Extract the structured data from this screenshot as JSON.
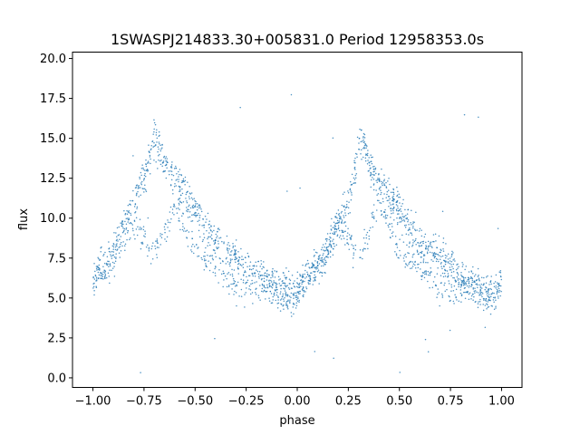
{
  "chart_data": {
    "type": "scatter",
    "title": "1SWASPJ214833.30+005831.0 Period 12958353.0s",
    "xlabel": "phase",
    "ylabel": "flux",
    "xlim": [
      -1.1,
      1.1
    ],
    "ylim": [
      -0.6,
      20.4
    ],
    "xticks": [
      -1.0,
      -0.75,
      -0.5,
      -0.25,
      0.0,
      0.25,
      0.5,
      0.75,
      1.0
    ],
    "xtick_labels": [
      "−1.00",
      "−0.75",
      "−0.50",
      "−0.25",
      "0.00",
      "0.25",
      "0.50",
      "0.75",
      "1.00"
    ],
    "yticks": [
      0.0,
      2.5,
      5.0,
      7.5,
      10.0,
      12.5,
      15.0,
      17.5,
      20.0
    ],
    "ytick_labels": [
      "0.0",
      "2.5",
      "5.0",
      "7.5",
      "10.0",
      "12.5",
      "15.0",
      "17.5",
      "20.0"
    ],
    "grid": false,
    "marker_color": "#1f77b4",
    "series": [
      {
        "description_of_shape": "folded light curve, pattern repeats with period 1 in phase",
        "phase": [
          -1.0,
          -0.95,
          -0.9,
          -0.85,
          -0.8,
          -0.75,
          -0.72,
          -0.7,
          -0.68,
          -0.65,
          -0.6,
          -0.55,
          -0.5,
          -0.45,
          -0.4,
          -0.35,
          -0.3,
          -0.25,
          -0.2,
          -0.15,
          -0.1,
          -0.05,
          0.0,
          0.05,
          0.1,
          0.15,
          0.2,
          0.25,
          0.28,
          0.3,
          0.32,
          0.35,
          0.4,
          0.45,
          0.5,
          0.55,
          0.6,
          0.65,
          0.7,
          0.75,
          0.8,
          0.85,
          0.9,
          0.95,
          1.0
        ],
        "flux": [
          6.5,
          7.0,
          8.0,
          9.5,
          11.0,
          12.5,
          14.0,
          15.0,
          14.5,
          13.5,
          12.5,
          11.5,
          10.5,
          9.5,
          8.5,
          8.0,
          7.5,
          7.0,
          6.5,
          6.0,
          5.5,
          5.0,
          5.0,
          6.5,
          7.0,
          8.0,
          9.5,
          11.0,
          13.0,
          14.5,
          15.0,
          13.5,
          12.5,
          11.5,
          10.5,
          9.5,
          8.5,
          8.0,
          7.5,
          7.0,
          6.5,
          6.0,
          5.5,
          5.0,
          6.0
        ]
      },
      {
        "description_of_shape": "secondary lower branch of the folded light curve",
        "phase": [
          -1.0,
          -0.9,
          -0.8,
          -0.7,
          -0.6,
          -0.5,
          -0.4,
          -0.3,
          0.0,
          0.1,
          0.2,
          0.3,
          0.4,
          0.5,
          0.6,
          0.7
        ],
        "flux": [
          6.0,
          7.0,
          10.0,
          7.5,
          11.0,
          8.0,
          7.0,
          5.5,
          6.0,
          7.0,
          10.0,
          7.5,
          11.0,
          8.0,
          7.0,
          5.5
        ]
      }
    ]
  }
}
